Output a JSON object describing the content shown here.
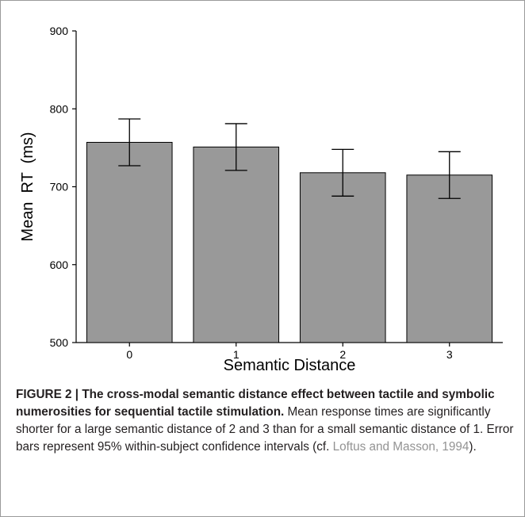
{
  "chart_data": {
    "type": "bar",
    "categories": [
      "0",
      "1",
      "2",
      "3"
    ],
    "values": [
      757,
      751,
      718,
      715
    ],
    "error_bars": {
      "lower": [
        727,
        721,
        688,
        685
      ],
      "upper": [
        787,
        781,
        748,
        745
      ]
    },
    "xlabel": "Semantic Distance",
    "ylabel": "Mean  RT  (ms)",
    "ylim": [
      500,
      900
    ],
    "yticks": [
      "500",
      "600",
      "700",
      "800",
      "900"
    ],
    "grid": false,
    "bar_color": "#999999",
    "bar_edge_color": "#000000"
  },
  "caption": {
    "label": "FIGURE 2 | ",
    "title": "The cross-modal semantic distance effect between tactile and symbolic numerosities for sequential tactile stimulation.",
    "body_1": " Mean response times are significantly shorter for a large semantic distance of 2 and 3 than for a small semantic distance of 1. Error bars represent 95% within-subject confidence intervals (cf. ",
    "reference": "Loftus and Masson, 1994",
    "body_2": ")."
  }
}
